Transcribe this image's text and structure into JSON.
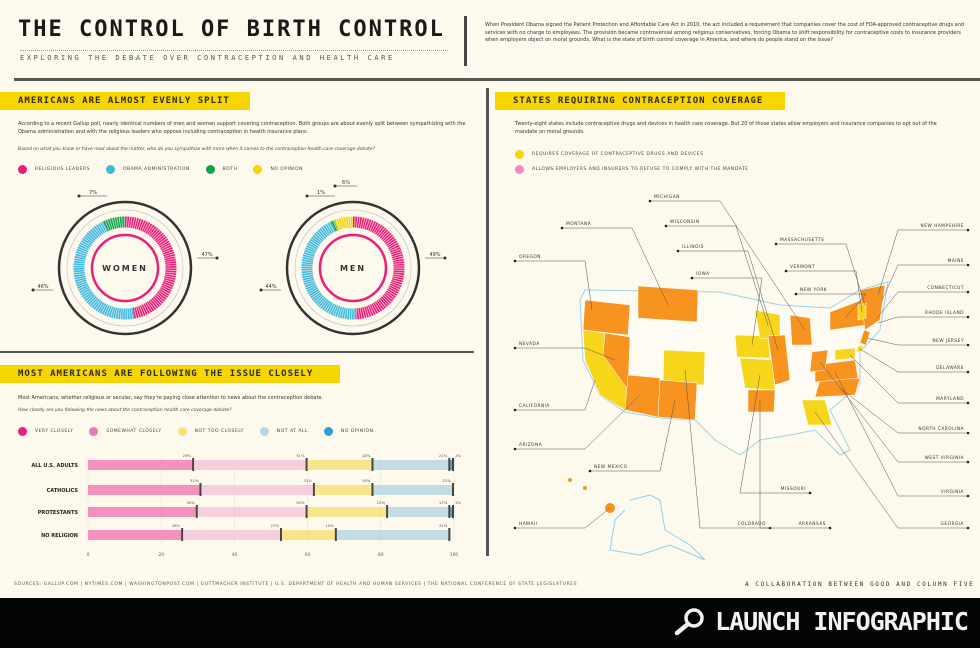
{
  "header": {
    "title": "THE CONTROL OF BIRTH CONTROL",
    "subtitle": "EXPLORING THE DEBATE OVER CONTRACEPTION AND HEALTH CARE",
    "intro": "When President Obama signed the Patient Protection and Affordable Care Act in 2010, the act included a requirement that companies cover the cost of FDA-approved contraceptive drugs and services with no charge to employees. The provision became controversial among religious conservatives, forcing Obama to shift responsibility for contraceptive costs to insurance providers when employers object on moral grounds. What is the state of birth control coverage in America, and where do people stand on the issue?"
  },
  "split": {
    "banner": "AMERICANS ARE ALMOST EVENLY SPLIT",
    "body": "According to a recent Gallup poll, nearly identical numbers of men and women support covering contraception. Both groups are about evenly split between sympathizing with the Obama administration and with the religious leaders who oppose including contraception in health insurance plans.",
    "question": "Based on what you know or have read about the matter, who do you sympathize with more when it comes to the contraception health care coverage debate?",
    "legend": [
      {
        "label": "Religious leaders",
        "color": "#ec1e79"
      },
      {
        "label": "Obama administration",
        "color": "#3fb8e0"
      },
      {
        "label": "Both",
        "color": "#10a34a"
      },
      {
        "label": "No opinion",
        "color": "#f7d500"
      }
    ]
  },
  "following": {
    "banner": "MOST AMERICANS ARE FOLLOWING THE ISSUE CLOSELY",
    "body": "Most Americans, whether religious or secular, say they're paying close attention to news about the contraception debate.",
    "question": "How closely are you following the news about the contraception health care coverage debate?",
    "legend": [
      {
        "label": "Very closely",
        "color": "#ec1e79"
      },
      {
        "label": "Somewhat closely",
        "color": "#e77bb7"
      },
      {
        "label": "Not too closely",
        "color": "#f6e27a"
      },
      {
        "label": "Not at all",
        "color": "#b9d7e2"
      },
      {
        "label": "No opinion",
        "color": "#2d9fd0"
      }
    ]
  },
  "states": {
    "banner": "STATES REQUIRING CONTRACEPTION COVERAGE",
    "body": "Twenty-eight states include contraceptive drugs and devices in health care coverage. But 20 of those states allow employers and insurance companies to opt out of the mandate on moral grounds.",
    "legend": [
      {
        "label": "Requires coverage of contraceptive drugs and devices",
        "color": "#f7d500"
      },
      {
        "label": "Allows employers and insurers to refuse to comply with the mandate",
        "color": "#f08ac0"
      }
    ],
    "colors": {
      "requires": "#f7d51a",
      "opt_out": "#f7931e"
    },
    "labels": [
      "Michigan",
      "Montana",
      "Wisconsin",
      "Oregon",
      "Illinois",
      "Iowa",
      "Massachusetts",
      "Vermont",
      "New York",
      "New Hampshire",
      "Maine",
      "Connecticut",
      "Rhode Island",
      "New Jersey",
      "Delaware",
      "Nevada",
      "Maryland",
      "California",
      "North Carolina",
      "Arizona",
      "West Virginia",
      "New Mexico",
      "Missouri",
      "Virginia",
      "Hawaii",
      "Colorado",
      "Arkansas",
      "Georgia"
    ]
  },
  "chart_data": [
    {
      "type": "pie",
      "title": "",
      "categories": [
        "Religious leaders",
        "Obama administration",
        "Both",
        "No opinion"
      ],
      "series": [
        {
          "name": "WOMEN",
          "values": [
            47,
            46,
            7,
            0
          ]
        },
        {
          "name": "MEN",
          "values": [
            49,
            44,
            1,
            6
          ]
        }
      ],
      "labels": {
        "WOMEN": [
          "47%",
          "46%",
          "7%"
        ],
        "MEN": [
          "49%",
          "44%",
          "1%",
          "6%"
        ]
      }
    },
    {
      "type": "bar",
      "stacked": true,
      "orientation": "horizontal",
      "categories": [
        "ALL U.S. ADULTS",
        "CATHOLICS",
        "PROTESTANTS",
        "NO RELIGION"
      ],
      "series": [
        {
          "name": "Very closely",
          "values": [
            29,
            31,
            30,
            26
          ]
        },
        {
          "name": "Somewhat closely",
          "values": [
            31,
            31,
            30,
            27
          ]
        },
        {
          "name": "Not too closely",
          "values": [
            18,
            16,
            22,
            15
          ]
        },
        {
          "name": "Not at all",
          "values": [
            21,
            22,
            17,
            31
          ]
        },
        {
          "name": "No opinion",
          "values": [
            1,
            0,
            1,
            0
          ]
        }
      ],
      "xticks": [
        "0",
        "20",
        "40",
        "60",
        "80",
        "100"
      ],
      "xlim": [
        0,
        100
      ]
    }
  ],
  "footer": {
    "sources": "SOURCES: GALLUP.COM | NYTIMES.COM | WASHINGTONPOST.COM | GUTTMACHER INSTITUTE | U.S. DEPARTMENT OF HEALTH AND HUMAN SERVICES | THE NATIONAL CONFERENCE OF STATE LEGISLATURES",
    "collab": "A COLLABORATION BETWEEN GOOD AND COLUMN FIVE",
    "launch": "LAUNCH INFOGRAPHIC"
  }
}
